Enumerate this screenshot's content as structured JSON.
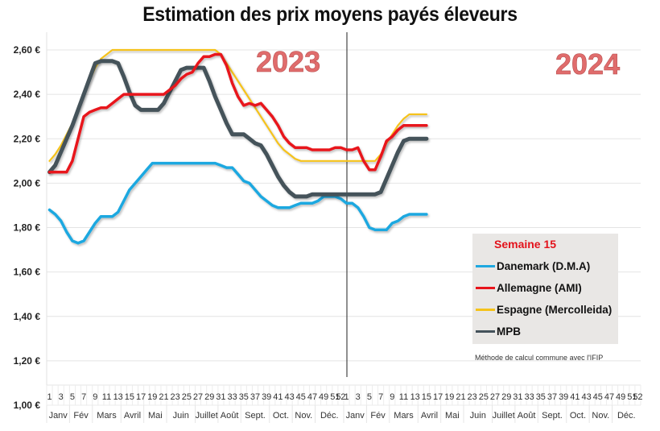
{
  "chart_data": {
    "type": "line",
    "title": "Estimation des prix moyens payés éleveurs",
    "xlabel": "",
    "ylabel": "",
    "ylim": [
      1.0,
      2.7
    ],
    "y_ticks": [
      "1,00 €",
      "1,20 €",
      "1,40 €",
      "1,60 €",
      "1,80 €",
      "2,00 €",
      "2,20 €",
      "2,40 €",
      "2,60 €"
    ],
    "y_tick_values": [
      1.0,
      1.2,
      1.4,
      1.6,
      1.8,
      2.0,
      2.2,
      2.4,
      2.6
    ],
    "grid": true,
    "years": [
      "2023",
      "2024"
    ],
    "weeks_per_year": 52,
    "week_tick_labels": [
      "1",
      "3",
      "5",
      "7",
      "9",
      "11",
      "13",
      "15",
      "17",
      "19",
      "21",
      "23",
      "25",
      "27",
      "29",
      "31",
      "33",
      "35",
      "37",
      "39",
      "41",
      "43",
      "45",
      "47",
      "49",
      "51",
      "52"
    ],
    "month_labels": [
      "Janv",
      "Fév",
      "Mars",
      "Avril",
      "Mai",
      "Juin",
      "Juillet",
      "Août",
      "Sept.",
      "Oct.",
      "Nov.",
      "Déc."
    ],
    "month_start_weeks": [
      1,
      5,
      9,
      14,
      18,
      22,
      27,
      31,
      35,
      40,
      44,
      48
    ],
    "divider_after_week": 52,
    "x_description": "Consecutive weeks: 2023 W1–W52 then 2024 W1–W15 (index 1..67)",
    "series": [
      {
        "name": "Danemark (D.M.A)",
        "color": "#1fa8e0",
        "values": [
          1.88,
          1.86,
          1.83,
          1.78,
          1.74,
          1.73,
          1.74,
          1.78,
          1.82,
          1.85,
          1.85,
          1.85,
          1.87,
          1.92,
          1.97,
          2.0,
          2.03,
          2.06,
          2.09,
          2.09,
          2.09,
          2.09,
          2.09,
          2.09,
          2.09,
          2.09,
          2.09,
          2.09,
          2.09,
          2.09,
          2.08,
          2.07,
          2.07,
          2.04,
          2.01,
          2.0,
          1.97,
          1.94,
          1.92,
          1.9,
          1.89,
          1.89,
          1.89,
          1.9,
          1.91,
          1.91,
          1.91,
          1.92,
          1.94,
          1.94,
          1.94,
          1.93,
          1.91,
          1.91,
          1.89,
          1.85,
          1.8,
          1.79,
          1.79,
          1.79,
          1.82,
          1.83,
          1.85,
          1.86,
          1.86,
          1.86,
          1.86
        ]
      },
      {
        "name": "Allemagne (AMI)",
        "color": "#e8141b",
        "values": [
          2.05,
          2.05,
          2.05,
          2.05,
          2.1,
          2.2,
          2.3,
          2.32,
          2.33,
          2.34,
          2.34,
          2.36,
          2.38,
          2.4,
          2.4,
          2.4,
          2.4,
          2.4,
          2.4,
          2.4,
          2.4,
          2.42,
          2.44,
          2.47,
          2.49,
          2.5,
          2.54,
          2.57,
          2.57,
          2.58,
          2.58,
          2.53,
          2.45,
          2.39,
          2.35,
          2.36,
          2.35,
          2.36,
          2.33,
          2.3,
          2.26,
          2.21,
          2.18,
          2.16,
          2.16,
          2.16,
          2.15,
          2.15,
          2.15,
          2.15,
          2.16,
          2.16,
          2.15,
          2.15,
          2.16,
          2.1,
          2.06,
          2.06,
          2.12,
          2.19,
          2.21,
          2.24,
          2.26,
          2.26,
          2.26,
          2.26,
          2.26
        ]
      },
      {
        "name": "Espagne (Mercolleida)",
        "color": "#f5c21a",
        "values": [
          2.1,
          2.13,
          2.17,
          2.22,
          2.27,
          2.33,
          2.4,
          2.46,
          2.52,
          2.56,
          2.58,
          2.6,
          2.6,
          2.6,
          2.6,
          2.6,
          2.6,
          2.6,
          2.6,
          2.6,
          2.6,
          2.6,
          2.6,
          2.6,
          2.6,
          2.6,
          2.6,
          2.6,
          2.6,
          2.6,
          2.58,
          2.54,
          2.5,
          2.46,
          2.42,
          2.38,
          2.34,
          2.3,
          2.26,
          2.22,
          2.18,
          2.15,
          2.13,
          2.11,
          2.1,
          2.1,
          2.1,
          2.1,
          2.1,
          2.1,
          2.1,
          2.1,
          2.1,
          2.1,
          2.1,
          2.1,
          2.1,
          2.1,
          2.13,
          2.18,
          2.22,
          2.26,
          2.29,
          2.31,
          2.31,
          2.31,
          2.31
        ]
      },
      {
        "name": "MPB",
        "color": "#44525a",
        "values": [
          2.05,
          2.08,
          2.14,
          2.2,
          2.26,
          2.33,
          2.4,
          2.47,
          2.54,
          2.55,
          2.55,
          2.55,
          2.54,
          2.48,
          2.41,
          2.35,
          2.33,
          2.33,
          2.33,
          2.33,
          2.36,
          2.41,
          2.46,
          2.51,
          2.52,
          2.52,
          2.52,
          2.52,
          2.46,
          2.39,
          2.33,
          2.27,
          2.22,
          2.22,
          2.22,
          2.2,
          2.18,
          2.17,
          2.13,
          2.08,
          2.03,
          1.99,
          1.96,
          1.94,
          1.94,
          1.94,
          1.95,
          1.95,
          1.95,
          1.95,
          1.95,
          1.95,
          1.95,
          1.95,
          1.95,
          1.95,
          1.95,
          1.95,
          1.96,
          2.02,
          2.08,
          2.14,
          2.19,
          2.2,
          2.2,
          2.2,
          2.2
        ]
      }
    ],
    "annotations": [
      "2023",
      "2024"
    ],
    "legend": {
      "title": "Semaine 15",
      "placement": "bottom-right"
    },
    "note": "Méthode de calcul commune avec l'IFIP"
  }
}
